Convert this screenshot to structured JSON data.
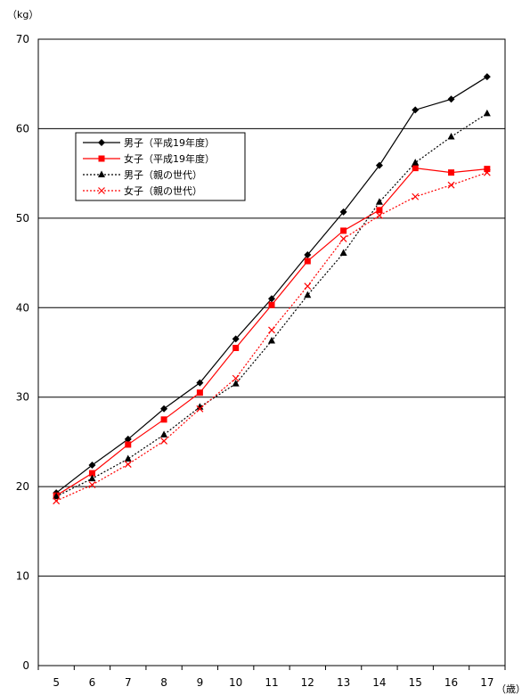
{
  "chart_data": {
    "type": "line",
    "title": "",
    "ylabel": "（kg）",
    "xlabel": "（歳）",
    "categories": [
      "5",
      "6",
      "7",
      "8",
      "9",
      "10",
      "11",
      "12",
      "13",
      "14",
      "15",
      "16",
      "17"
    ],
    "yticks": [
      "0",
      "10",
      "20",
      "30",
      "40",
      "50",
      "60",
      "70"
    ],
    "ylim": [
      0,
      70
    ],
    "grid": true,
    "legend_position": "upper-left",
    "series": [
      {
        "name": "男子（平成19年度）",
        "color": "#000000",
        "dash": "solid",
        "marker": "diamond",
        "values": [
          19.3,
          22.4,
          25.3,
          28.7,
          31.6,
          36.5,
          41.0,
          45.9,
          50.7,
          55.9,
          62.1,
          63.3,
          65.8
        ]
      },
      {
        "name": "女子（平成19年度）",
        "color": "#ff0000",
        "dash": "solid",
        "marker": "square",
        "values": [
          19.0,
          21.5,
          24.7,
          27.5,
          30.5,
          35.5,
          40.3,
          45.2,
          48.6,
          50.9,
          55.6,
          55.1,
          55.5
        ]
      },
      {
        "name": "男子（親の世代）",
        "color": "#000000",
        "dash": "dotted",
        "marker": "triangle",
        "values": [
          18.9,
          20.9,
          23.1,
          25.8,
          28.9,
          31.5,
          36.3,
          41.4,
          46.1,
          51.8,
          56.2,
          59.1,
          61.7
        ]
      },
      {
        "name": "女子（親の世代）",
        "color": "#ff0000",
        "dash": "dotted",
        "marker": "x",
        "values": [
          18.4,
          20.2,
          22.5,
          25.1,
          28.7,
          32.1,
          37.5,
          42.4,
          47.7,
          50.3,
          52.4,
          53.7,
          55.1
        ]
      }
    ]
  }
}
